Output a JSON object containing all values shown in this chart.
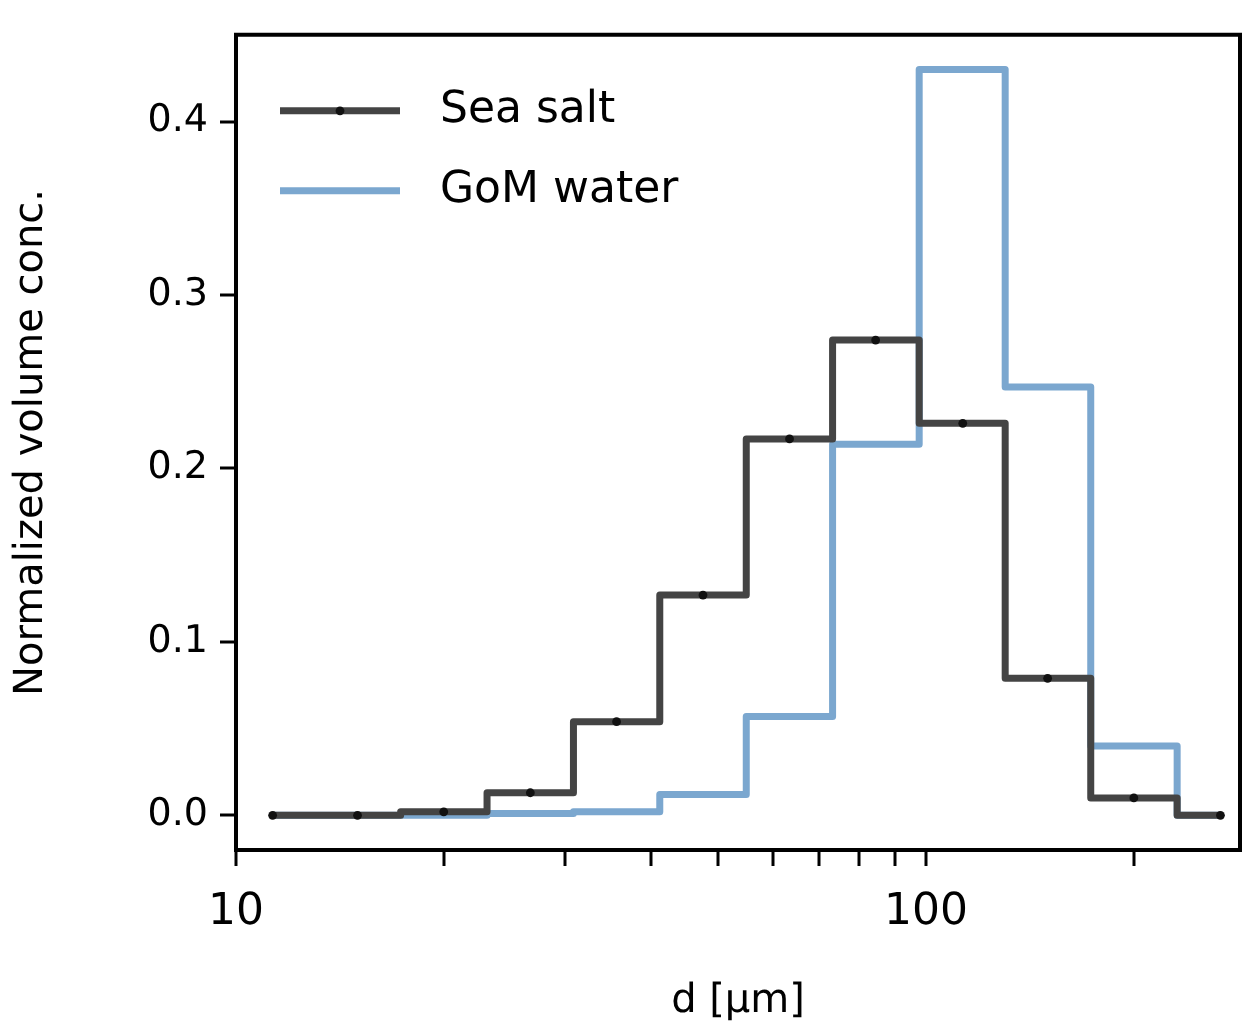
{
  "chart_data": {
    "type": "step",
    "xlabel": "d [µm]",
    "ylabel": "Normalized volume conc.",
    "x": [
      11.3,
      15,
      20,
      26.7,
      35.6,
      47.5,
      63.4,
      84.5,
      113,
      150,
      200,
      267
    ],
    "series": [
      {
        "name": "Sea salt",
        "color": "#444444",
        "marker": "circle",
        "values": [
          0,
          0,
          0.002,
          0.013,
          0.054,
          0.127,
          0.217,
          0.274,
          0.226,
          0.079,
          0.01,
          0
        ]
      },
      {
        "name": "GoM water",
        "color": "#7ba7cf",
        "marker": "none",
        "values": [
          0,
          0,
          0,
          0.001,
          0.002,
          0.012,
          0.057,
          0.214,
          0.43,
          0.247,
          0.04,
          0
        ]
      }
    ],
    "log": "x",
    "xlim": [
      10,
      285
    ],
    "xticks": [
      10,
      {
        "value": 20,
        "label": null
      },
      {
        "value": 30,
        "label": null
      },
      {
        "value": 40,
        "label": null
      },
      {
        "value": 50,
        "label": null
      },
      {
        "value": 60,
        "label": null
      },
      {
        "value": 70,
        "label": null
      },
      {
        "value": 80,
        "label": null
      },
      {
        "value": 90,
        "label": null
      },
      100,
      {
        "value": 200,
        "label": null
      }
    ],
    "ylim": [
      -0.02,
      0.45
    ],
    "yticks": [
      {
        "value": 0,
        "label": "0.0"
      },
      {
        "value": 0.1,
        "label": "0.1"
      },
      {
        "value": 0.2,
        "label": "0.2"
      },
      {
        "value": 0.3,
        "label": "0.3"
      },
      {
        "value": 0.4,
        "label": "0.4"
      }
    ],
    "grid": false,
    "legend": "top left",
    "line_style": "solid"
  }
}
